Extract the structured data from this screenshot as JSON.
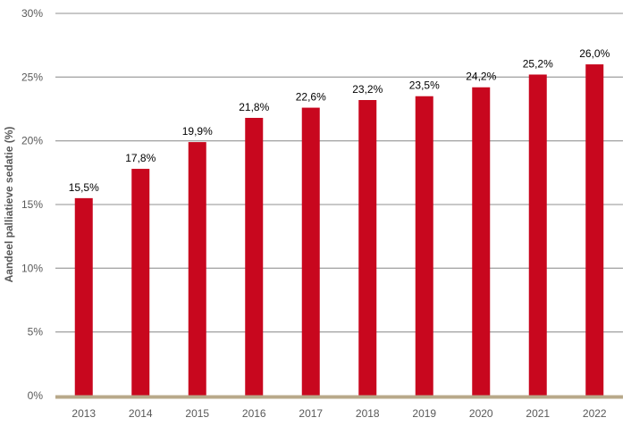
{
  "chart_data": {
    "type": "bar",
    "title": "",
    "xlabel": "",
    "ylabel": "Aandeel palliatieve sedatie (%)",
    "categories": [
      "2013",
      "2014",
      "2015",
      "2016",
      "2017",
      "2018",
      "2019",
      "2020",
      "2021",
      "2022"
    ],
    "values": [
      15.5,
      17.8,
      19.9,
      21.8,
      22.6,
      23.2,
      23.5,
      24.2,
      25.2,
      26.0
    ],
    "data_labels": [
      "15,5%",
      "17,8%",
      "19,9%",
      "21,8%",
      "22,6%",
      "23,2%",
      "23,5%",
      "24,2%",
      "25,2%",
      "26,0%"
    ],
    "ylim": [
      0,
      30
    ],
    "yticks": [
      0,
      5,
      10,
      15,
      20,
      25,
      30
    ],
    "ytick_labels": [
      "0%",
      "5%",
      "10%",
      "15%",
      "20%",
      "25%",
      "30%"
    ],
    "grid": "horizontal",
    "legend": "none",
    "colors": {
      "bar": "#C8071E",
      "gridline": "#A6A6A6",
      "baseline": "#B8A98A"
    }
  }
}
